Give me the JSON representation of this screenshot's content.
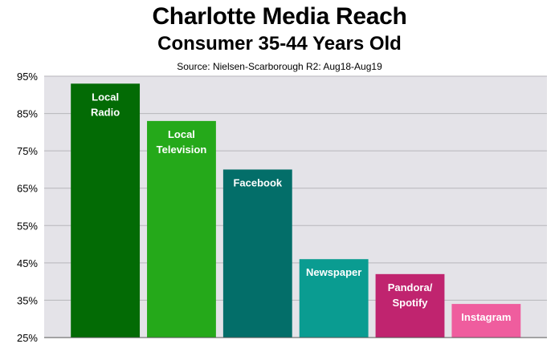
{
  "chart_data": {
    "type": "bar",
    "title": "Charlotte Media Reach",
    "subtitle": "Consumer 35-44 Years Old",
    "source": "Source: Nielsen-Scarborough R2:  Aug18-Aug19",
    "categories": [
      [
        "Local",
        "Radio"
      ],
      [
        "Local",
        "Television"
      ],
      [
        "Facebook"
      ],
      [
        "Newspaper"
      ],
      [
        "Pandora/",
        "Spotify"
      ],
      [
        "Instagram"
      ]
    ],
    "values": [
      93,
      83,
      70,
      46,
      42,
      34
    ],
    "colors": [
      "#036b05",
      "#25a91a",
      "#036e69",
      "#0a9c91",
      "#c0246f",
      "#ef5d9e"
    ],
    "ylim": [
      25,
      95
    ],
    "yticks": [
      "95%",
      "85%",
      "75%",
      "65%",
      "55%",
      "45%",
      "35%",
      "25%"
    ],
    "ytick_values": [
      95,
      85,
      75,
      65,
      55,
      45,
      35,
      25
    ],
    "grid": true,
    "xlabel": "",
    "ylabel": ""
  }
}
